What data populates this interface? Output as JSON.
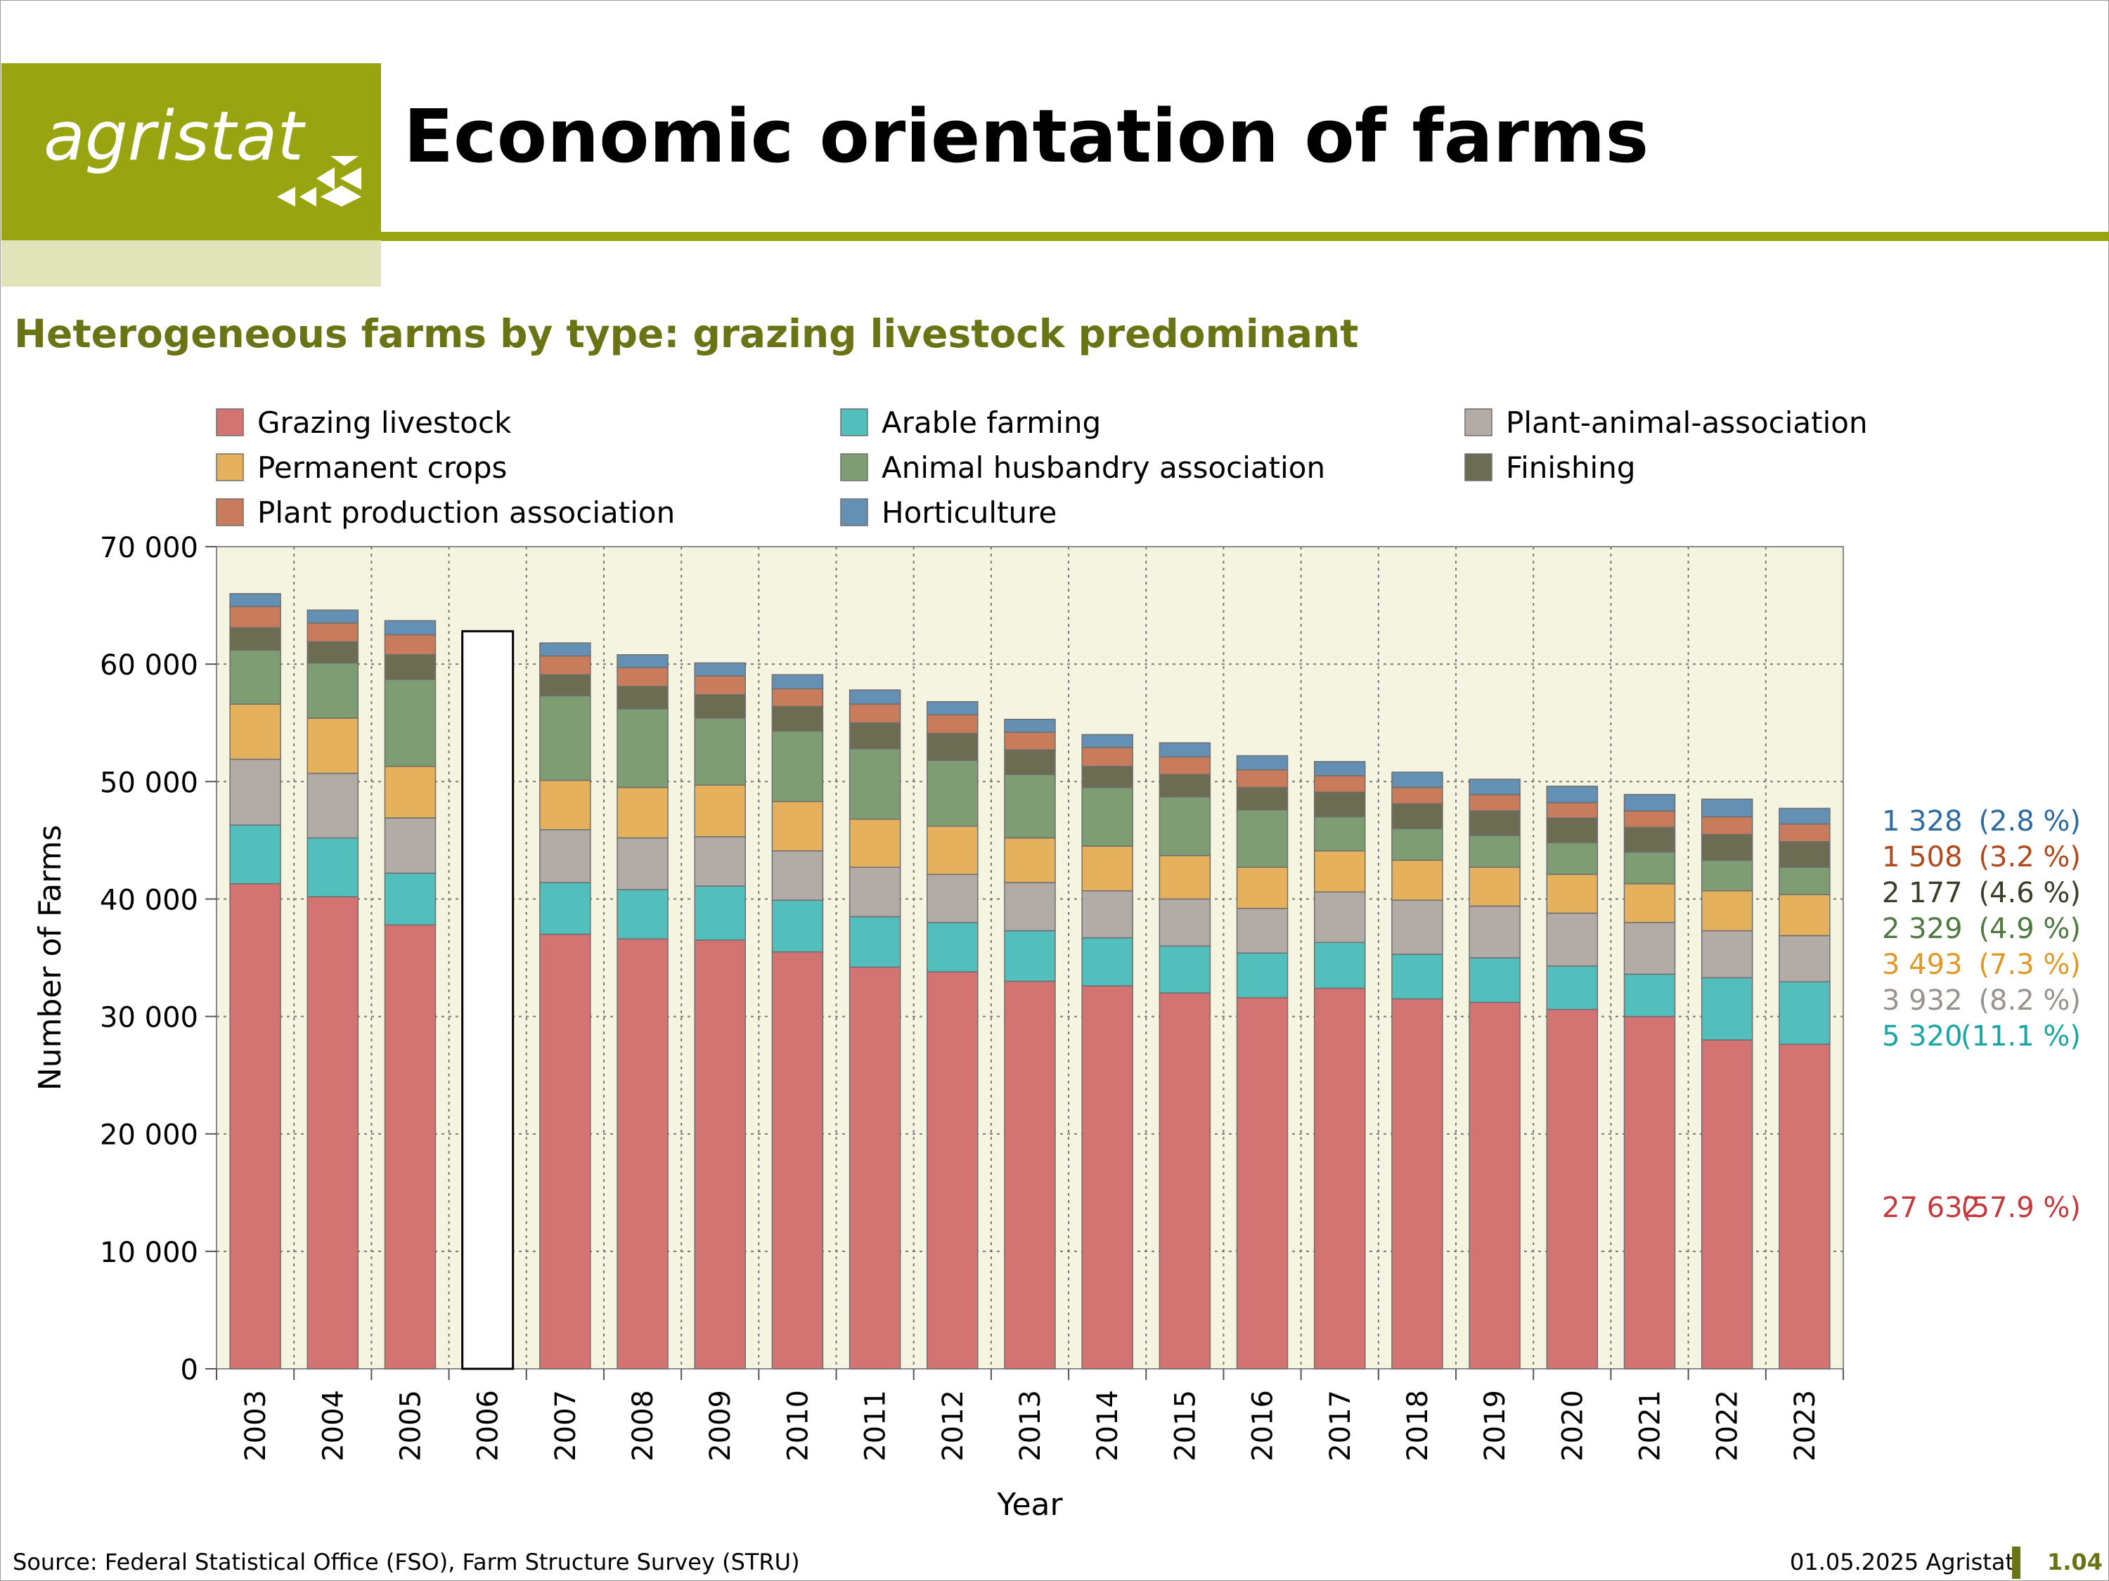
{
  "header": {
    "logo_text": "agristat",
    "title": "Economic orientation of farms",
    "subtitle": "Heterogeneous farms by type: grazing livestock predominant"
  },
  "footer": {
    "source": "Source: Federal Statistical Office (FSO), Farm Structure Survey (STRU)",
    "date": "01.05.2025 Agristat",
    "page": "1.04"
  },
  "chart_data": {
    "type": "bar",
    "stacked": true,
    "ylabel": "Number of Farms",
    "xlabel": "Year",
    "ylim": [
      0,
      70000
    ],
    "yticks": [
      0,
      10000,
      20000,
      30000,
      40000,
      50000,
      60000,
      70000
    ],
    "ytick_labels": [
      "0",
      "10 000",
      "20 000",
      "30 000",
      "40 000",
      "50 000",
      "60 000",
      "70 000"
    ],
    "grid": true,
    "plot_background": "#f4f4e0",
    "categories": [
      "2003",
      "2004",
      "2005",
      "2006",
      "2007",
      "2008",
      "2009",
      "2010",
      "2011",
      "2012",
      "2013",
      "2014",
      "2015",
      "2016",
      "2017",
      "2018",
      "2019",
      "2020",
      "2021",
      "2022",
      "2023"
    ],
    "empty_categories": [
      "2006"
    ],
    "empty_bar_total": 62800,
    "series": [
      {
        "name": "Grazing livestock",
        "color": "#d47472",
        "values": [
          41300,
          40200,
          37800,
          0,
          37000,
          36600,
          36500,
          35500,
          34200,
          33800,
          33000,
          32600,
          32000,
          31600,
          32400,
          31500,
          31200,
          30600,
          30000,
          28000,
          27632
        ]
      },
      {
        "name": "Arable farming",
        "color": "#52bfbc",
        "values": [
          5000,
          5000,
          4400,
          0,
          4400,
          4200,
          4600,
          4400,
          4300,
          4200,
          4300,
          4100,
          4000,
          3800,
          3900,
          3800,
          3800,
          3700,
          3600,
          5300,
          5320
        ]
      },
      {
        "name": "Plant-animal-association",
        "color": "#b3aca6",
        "values": [
          5600,
          5500,
          4700,
          0,
          4500,
          4400,
          4200,
          4200,
          4200,
          4100,
          4100,
          4000,
          4000,
          3800,
          4300,
          4600,
          4400,
          4500,
          4400,
          4000,
          3932
        ]
      },
      {
        "name": "Permanent crops",
        "color": "#e6b15c",
        "values": [
          4700,
          4700,
          4400,
          0,
          4200,
          4300,
          4400,
          4200,
          4100,
          4100,
          3800,
          3800,
          3700,
          3500,
          3500,
          3400,
          3300,
          3300,
          3300,
          3400,
          3493
        ]
      },
      {
        "name": "Animal husbandry association",
        "color": "#7e9d72",
        "values": [
          4600,
          4700,
          7400,
          0,
          7200,
          6700,
          5700,
          6000,
          6000,
          5600,
          5400,
          5000,
          5000,
          4900,
          2900,
          2700,
          2700,
          2700,
          2700,
          2600,
          2329
        ]
      },
      {
        "name": "Finishing",
        "color": "#6b6c52",
        "values": [
          1900,
          1800,
          2100,
          0,
          1800,
          1900,
          2000,
          2100,
          2200,
          2300,
          2100,
          1800,
          1900,
          1900,
          2100,
          2100,
          2100,
          2100,
          2100,
          2200,
          2177
        ]
      },
      {
        "name": "Plant production association",
        "color": "#c87c5c",
        "values": [
          1800,
          1600,
          1700,
          0,
          1600,
          1600,
          1600,
          1500,
          1600,
          1600,
          1500,
          1600,
          1500,
          1500,
          1400,
          1400,
          1400,
          1300,
          1400,
          1500,
          1508
        ]
      },
      {
        "name": "Horticulture",
        "color": "#6490b4",
        "values": [
          1100,
          1100,
          1200,
          0,
          1100,
          1100,
          1100,
          1200,
          1200,
          1100,
          1100,
          1100,
          1200,
          1200,
          1200,
          1300,
          1300,
          1400,
          1400,
          1500,
          1328
        ]
      }
    ],
    "annotations": [
      {
        "text": "1 328",
        "pct": "(2.8 %)",
        "series": "Horticulture",
        "color": "#2e6b9e"
      },
      {
        "text": "1 508",
        "pct": "(3.2 %)",
        "series": "Plant production association",
        "color": "#b04a1c"
      },
      {
        "text": "2 177",
        "pct": "(4.6 %)",
        "series": "Finishing",
        "color": "#3d3d2a"
      },
      {
        "text": "2 329",
        "pct": "(4.9 %)",
        "series": "Animal husbandry association",
        "color": "#4f7a40"
      },
      {
        "text": "3 493",
        "pct": "(7.3 %)",
        "series": "Permanent crops",
        "color": "#e09a2a"
      },
      {
        "text": "3 932",
        "pct": "(8.2 %)",
        "series": "Plant-animal-association",
        "color": "#9a928c"
      },
      {
        "text": "5 320",
        "pct": "(11.1 %)",
        "series": "Arable farming",
        "color": "#1aa6a3"
      },
      {
        "text": "27 632",
        "pct": "(57.9 %)",
        "series": "Grazing livestock",
        "color": "#c4393c"
      }
    ],
    "legend": {
      "placement": "top",
      "columns": [
        [
          "Grazing livestock",
          "Permanent crops",
          "Plant production association"
        ],
        [
          "Arable farming",
          "Animal husbandry association",
          "Horticulture"
        ],
        [
          "Plant-animal-association",
          "Finishing"
        ]
      ]
    }
  }
}
